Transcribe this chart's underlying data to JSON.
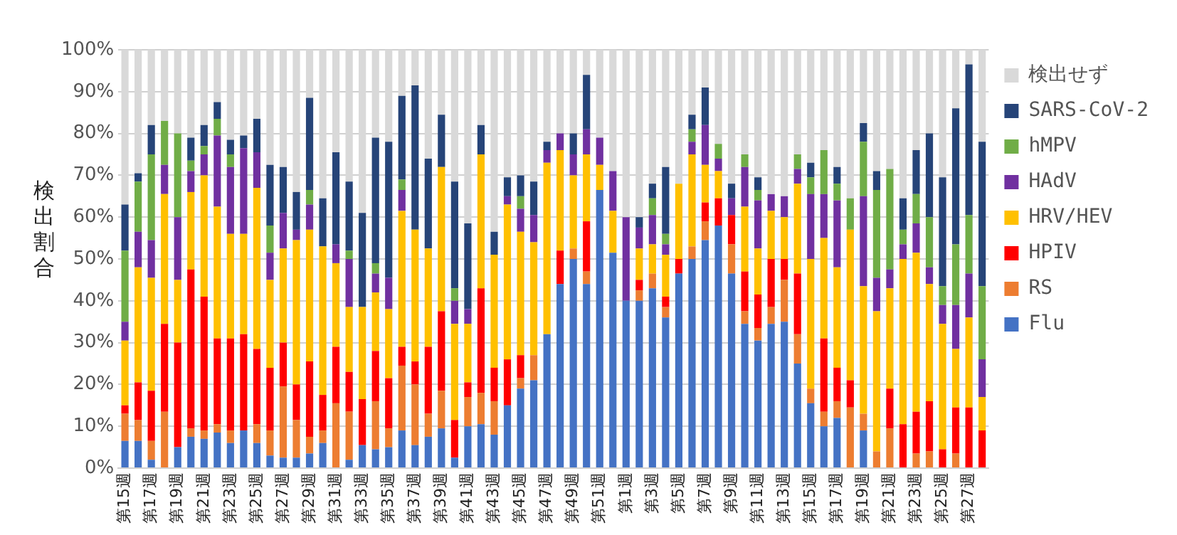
{
  "chart_data": {
    "type": "bar",
    "stacked": true,
    "ylabel": "検出割合",
    "categories": [
      "第15週",
      null,
      "第17週",
      null,
      "第19週",
      null,
      "第21週",
      null,
      "第23週",
      null,
      "第25週",
      null,
      "第27週",
      null,
      "第29週",
      null,
      "第31週",
      null,
      "第33週",
      null,
      "第35週",
      null,
      "第37週",
      null,
      "第39週",
      null,
      "第41週",
      null,
      "第43週",
      null,
      "第45週",
      null,
      "第47週",
      null,
      "第49週",
      null,
      "第51週",
      null,
      "第1週",
      null,
      "第3週",
      null,
      "第5週",
      null,
      "第7週",
      null,
      "第9週",
      null,
      "第11週",
      null,
      "第13週",
      null,
      "第15週",
      null,
      "第17週",
      null,
      "第19週",
      null,
      "第21週",
      null,
      "第23週",
      null,
      "第25週",
      null,
      "第27週",
      null
    ],
    "series": [
      {
        "name": "Flu",
        "color": "#4472c4",
        "values": [
          6.5,
          6.5,
          2,
          0,
          5,
          7.5,
          7,
          8.5,
          6,
          9,
          6,
          3,
          2.5,
          2.5,
          3.5,
          6,
          0,
          2,
          5.5,
          4.5,
          5,
          9,
          5.5,
          7.5,
          9.5,
          2.5,
          10,
          10.5,
          8,
          15,
          19,
          21,
          32,
          44,
          50,
          44,
          66.5,
          51.5,
          40,
          40,
          43,
          36,
          46.5,
          50,
          54.5,
          58,
          46.5,
          34.5,
          30.5,
          34.5,
          35,
          25,
          15.5,
          10,
          12,
          0,
          9,
          0,
          0,
          0,
          0,
          0,
          0,
          0,
          0,
          0
        ]
      },
      {
        "name": "RS",
        "color": "#ed7d31",
        "values": [
          6.5,
          5,
          4.5,
          13.5,
          0,
          2,
          2,
          2,
          3,
          0,
          4.5,
          6,
          17,
          9,
          4,
          3,
          15.5,
          11.5,
          0,
          11.5,
          4.5,
          15.5,
          14.5,
          5.5,
          9,
          0,
          7,
          7.5,
          8,
          0,
          2.5,
          6,
          0,
          0,
          2.5,
          3,
          0,
          0,
          0,
          2.5,
          3.5,
          2.5,
          0,
          3,
          4.5,
          0,
          7,
          3,
          3,
          4,
          10,
          7,
          3.5,
          3.5,
          4,
          14.5,
          4,
          4,
          9.5,
          0,
          3.5,
          4,
          0,
          3.5,
          0,
          0
        ]
      },
      {
        "name": "HPIV",
        "color": "#ff0000",
        "values": [
          2,
          9,
          12,
          21,
          25,
          38,
          32,
          20.5,
          22,
          23,
          18,
          15,
          10.5,
          8.5,
          18,
          8.5,
          13.5,
          9.5,
          11,
          12,
          12,
          4.5,
          5.5,
          16,
          19,
          9,
          3.5,
          25,
          8,
          11,
          5.5,
          0,
          0,
          8,
          0,
          12,
          0,
          0,
          0,
          2.5,
          0,
          2.5,
          3.5,
          0,
          4.5,
          6.5,
          7,
          9.5,
          8,
          11.5,
          5,
          14.5,
          0,
          17.5,
          8,
          6.5,
          0,
          0,
          9.5,
          10.5,
          10,
          12,
          4.5,
          11,
          14.5,
          9
        ]
      },
      {
        "name": "HRV/HEV",
        "color": "#ffc000",
        "values": [
          15.5,
          27.5,
          27,
          31,
          15,
          18.5,
          29,
          31.5,
          25,
          24,
          38.5,
          21,
          22.5,
          34.5,
          31.5,
          35.5,
          20,
          15.5,
          22,
          14,
          16.5,
          32.5,
          31.5,
          23.5,
          34.5,
          23,
          14,
          32,
          27,
          37,
          29.5,
          27,
          41,
          24,
          17.5,
          16,
          6,
          10,
          0,
          7.5,
          7,
          10,
          18,
          22,
          9,
          6.5,
          0,
          15.5,
          11,
          11.5,
          10,
          21.5,
          31,
          24,
          24,
          36,
          30.5,
          33.5,
          24,
          39.5,
          38,
          28,
          30,
          14,
          21.5,
          8
        ]
      },
      {
        "name": "HAdV",
        "color": "#7030a0",
        "values": [
          4.5,
          8.5,
          9,
          7,
          15,
          5,
          5,
          17,
          16,
          20.5,
          8.5,
          6.5,
          8.5,
          2.5,
          6,
          0,
          4.5,
          11.5,
          0,
          4.5,
          7.5,
          5,
          0,
          0,
          0,
          5.5,
          3.5,
          0,
          0,
          2,
          5.5,
          6.5,
          3,
          4,
          5,
          6,
          6.5,
          9.5,
          20,
          5,
          7,
          2.5,
          0,
          3,
          9.5,
          3,
          4,
          9.5,
          11.5,
          4,
          5,
          3.5,
          15.5,
          10.5,
          16,
          0,
          21.5,
          8,
          4.5,
          3.5,
          7,
          4,
          4.5,
          10.5,
          10.5,
          9
        ]
      },
      {
        "name": "hMPV",
        "color": "#70ad47",
        "values": [
          17,
          12,
          20.5,
          10.5,
          20,
          2.5,
          2,
          4,
          3,
          0,
          0,
          6.5,
          0,
          0,
          3.5,
          0,
          0,
          2,
          0,
          2.5,
          0,
          2.5,
          0,
          0,
          0,
          3,
          0,
          0,
          0,
          0,
          3,
          0,
          0,
          0,
          0,
          0,
          0,
          0,
          0,
          0,
          4,
          2.5,
          0,
          3,
          0,
          3.5,
          0,
          3,
          2.5,
          0,
          0,
          3.5,
          4,
          10.5,
          4,
          7.5,
          13,
          21,
          24,
          3.5,
          7,
          12,
          4.5,
          14.5,
          14,
          17.5
        ]
      },
      {
        "name": "SARS-CoV-2",
        "color": "#264478",
        "values": [
          11,
          2,
          7,
          0,
          0,
          5.5,
          5,
          4,
          3.5,
          3,
          8,
          14.5,
          11,
          9,
          22,
          11.5,
          22,
          16.5,
          22.5,
          30,
          32.5,
          20,
          34.5,
          21.5,
          12.5,
          25.5,
          20.5,
          7,
          5.5,
          4.5,
          5,
          8,
          2,
          0,
          5,
          13,
          0,
          0,
          0,
          2.5,
          3.5,
          16,
          0,
          3.5,
          9,
          0,
          3.5,
          0,
          3,
          0,
          0,
          0,
          3.5,
          0,
          4,
          0,
          4.5,
          4.5,
          0,
          7.5,
          10.5,
          20,
          26,
          32.5,
          36,
          34.5
        ]
      },
      {
        "name": "検出せず",
        "color": "#d9d9d9",
        "values": [
          37,
          29.5,
          18,
          17,
          20,
          21,
          18,
          12.5,
          21.5,
          20.5,
          16.5,
          27.5,
          28,
          34,
          11.5,
          35.5,
          24.5,
          31.5,
          39,
          21,
          22,
          11,
          8.5,
          26,
          15.5,
          31.5,
          41.5,
          18,
          43.5,
          30.5,
          30,
          31.5,
          22,
          20,
          20,
          6,
          21,
          29,
          40,
          40,
          32,
          28,
          32,
          15.5,
          9,
          22.5,
          32,
          25,
          30.5,
          34.5,
          35,
          25,
          27,
          24,
          28,
          35.5,
          17.5,
          29,
          28.5,
          35.5,
          24,
          20,
          30.5,
          14,
          3.5,
          22
        ]
      }
    ],
    "ylim": [
      0,
      100
    ],
    "yticks": [
      {
        "value": 0,
        "label": "0%"
      },
      {
        "value": 10,
        "label": "10%"
      },
      {
        "value": 20,
        "label": "20%"
      },
      {
        "value": 30,
        "label": "30%"
      },
      {
        "value": 40,
        "label": "40%"
      },
      {
        "value": 50,
        "label": "50%"
      },
      {
        "value": 60,
        "label": "60%"
      },
      {
        "value": 70,
        "label": "70%"
      },
      {
        "value": 80,
        "label": "80%"
      },
      {
        "value": 90,
        "label": "90%"
      },
      {
        "value": 100,
        "label": "100%"
      }
    ],
    "grid": "y",
    "legend": "right"
  }
}
